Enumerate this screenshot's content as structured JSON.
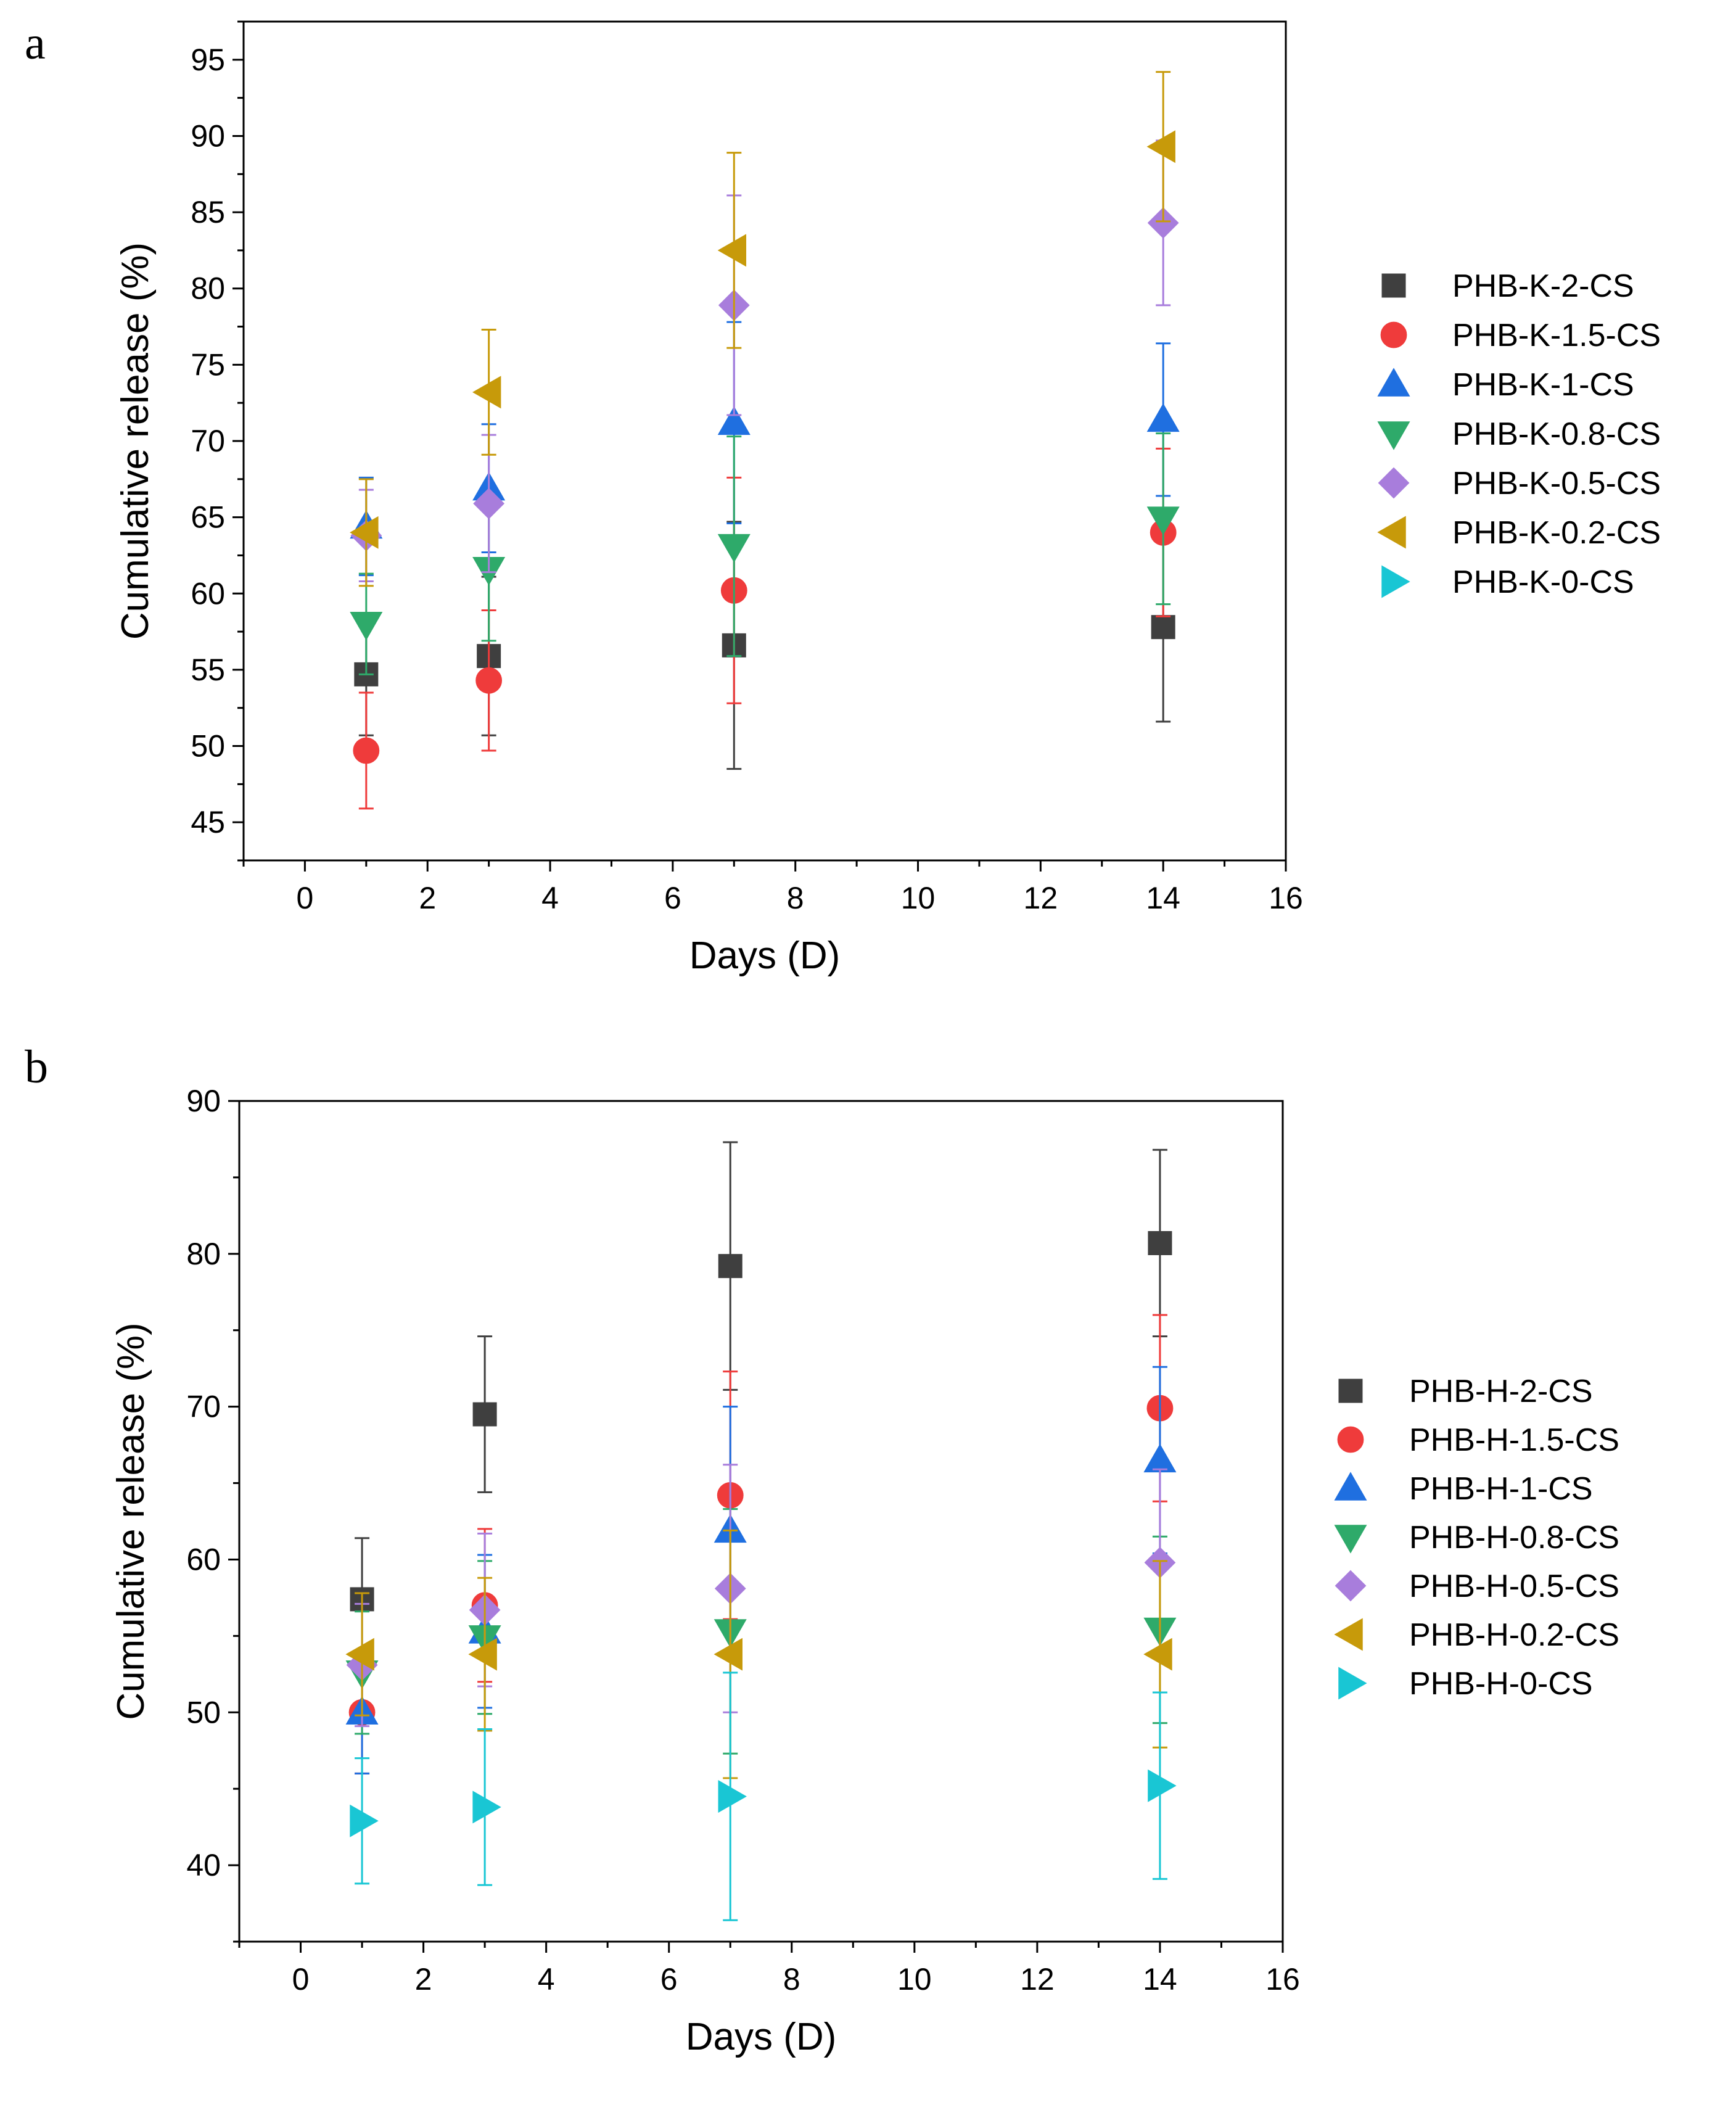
{
  "chart_data": [
    {
      "type": "scatter",
      "panel_label": "a",
      "title": "",
      "xlabel": "Days (D)",
      "ylabel": "Cumulative release (%)",
      "xlim": [
        -1,
        16
      ],
      "ylim": [
        42.5,
        97.5
      ],
      "xticks": [
        0,
        2,
        4,
        6,
        8,
        10,
        12,
        14,
        16
      ],
      "yticks": [
        45,
        50,
        55,
        60,
        65,
        70,
        75,
        80,
        85,
        90,
        95
      ],
      "grid": false,
      "legend_position": "right",
      "x": [
        1,
        3,
        7,
        14
      ],
      "series": [
        {
          "name": "PHB-K-2-CS",
          "marker": "square",
          "color": "#3f3f3f",
          "values": [
            54.7,
            55.9,
            56.6,
            57.8
          ],
          "errors": [
            4.0,
            5.2,
            8.1,
            6.2
          ]
        },
        {
          "name": "PHB-K-1.5-CS",
          "marker": "circle",
          "color": "#ef3b3b",
          "values": [
            49.7,
            54.3,
            60.2,
            64.0
          ],
          "errors": [
            3.8,
            4.6,
            7.4,
            5.5
          ]
        },
        {
          "name": "PHB-K-1-CS",
          "marker": "triangle-up",
          "color": "#1f6fe0",
          "values": [
            64.4,
            66.9,
            71.2,
            71.4
          ],
          "errors": [
            3.2,
            4.2,
            6.6,
            5.0
          ]
        },
        {
          "name": "PHB-K-0.8-CS",
          "marker": "triangle-down",
          "color": "#2eaa6a",
          "values": [
            58.0,
            61.6,
            63.1,
            64.9
          ],
          "errors": [
            3.3,
            4.7,
            7.2,
            5.6
          ]
        },
        {
          "name": "PHB-K-0.5-CS",
          "marker": "diamond",
          "color": "#a87ddc",
          "values": [
            63.8,
            65.9,
            78.9,
            84.3
          ],
          "errors": [
            3.0,
            4.5,
            7.2,
            5.4
          ]
        },
        {
          "name": "PHB-K-0.2-CS",
          "marker": "triangle-left",
          "color": "#c79a0a",
          "values": [
            64.0,
            73.2,
            82.5,
            89.3
          ],
          "errors": [
            3.5,
            4.1,
            6.4,
            4.9
          ]
        },
        {
          "name": "PHB-K-0-CS",
          "marker": "triangle-right",
          "color": "#19c6d4",
          "values": [],
          "errors": []
        }
      ]
    },
    {
      "type": "scatter",
      "panel_label": "b",
      "title": "",
      "xlabel": "Days (D)",
      "ylabel": "Cumulative release (%)",
      "xlim": [
        -1,
        16
      ],
      "ylim": [
        35,
        90
      ],
      "xticks": [
        0,
        2,
        4,
        6,
        8,
        10,
        12,
        14,
        16
      ],
      "yticks": [
        40,
        50,
        60,
        70,
        80,
        90
      ],
      "grid": false,
      "legend_position": "right",
      "x": [
        1,
        3,
        7,
        14
      ],
      "series": [
        {
          "name": "PHB-H-2-CS",
          "marker": "square",
          "color": "#3f3f3f",
          "values": [
            57.4,
            69.5,
            79.2,
            80.7
          ],
          "errors": [
            4.0,
            5.1,
            8.1,
            6.1
          ]
        },
        {
          "name": "PHB-H-1.5-CS",
          "marker": "circle",
          "color": "#ef3b3b",
          "values": [
            50.0,
            57.0,
            64.2,
            69.9
          ],
          "errors": [
            4.0,
            5.0,
            8.1,
            6.1
          ]
        },
        {
          "name": "PHB-H-1-CS",
          "marker": "triangle-up",
          "color": "#1f6fe0",
          "values": [
            50.0,
            55.3,
            61.9,
            66.5
          ],
          "errors": [
            4.0,
            5.0,
            8.1,
            6.1
          ]
        },
        {
          "name": "PHB-H-0.8-CS",
          "marker": "triangle-down",
          "color": "#2eaa6a",
          "values": [
            52.6,
            54.9,
            55.3,
            55.4
          ],
          "errors": [
            4.0,
            5.0,
            8.0,
            6.1
          ]
        },
        {
          "name": "PHB-H-0.5-CS",
          "marker": "diamond",
          "color": "#a87ddc",
          "values": [
            53.1,
            56.7,
            58.1,
            59.8
          ],
          "errors": [
            4.0,
            5.0,
            8.1,
            6.1
          ]
        },
        {
          "name": "PHB-H-0.2-CS",
          "marker": "triangle-left",
          "color": "#c79a0a",
          "values": [
            53.8,
            53.8,
            53.8,
            53.8
          ],
          "errors": [
            4.0,
            5.0,
            8.1,
            6.1
          ]
        },
        {
          "name": "PHB-H-0-CS",
          "marker": "triangle-right",
          "color": "#19c6d4",
          "values": [
            42.9,
            43.8,
            44.5,
            45.2
          ],
          "errors": [
            4.1,
            5.1,
            8.1,
            6.1
          ]
        }
      ]
    }
  ]
}
